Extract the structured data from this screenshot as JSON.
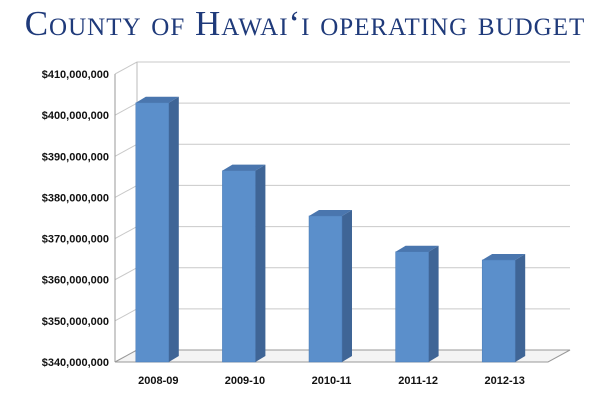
{
  "title": "County of Hawaiʻi operating budget",
  "chart_data": {
    "type": "bar",
    "title": "County of Hawaiʻi operating budget",
    "categories": [
      "2008-09",
      "2009-10",
      "2010-11",
      "2011-12",
      "2012-13"
    ],
    "values": [
      403000000,
      386500000,
      375500000,
      366800000,
      364800000
    ],
    "y_tick_labels": [
      "$340,000,000",
      "$350,000,000",
      "$360,000,000",
      "$370,000,000",
      "$380,000,000",
      "$390,000,000",
      "$400,000,000",
      "$410,000,000"
    ],
    "ylim": [
      340000000,
      410000000
    ],
    "y_step": 10000000,
    "xlabel": "",
    "ylabel": "",
    "grid": true,
    "legend": "none",
    "style": "3d-column",
    "colors": {
      "bar_front": "#5b8fcb",
      "bar_side": "#3f6596",
      "bar_top": "#4a76ae",
      "grid": "#c9c9c9",
      "title": "#1f3a7a"
    }
  }
}
